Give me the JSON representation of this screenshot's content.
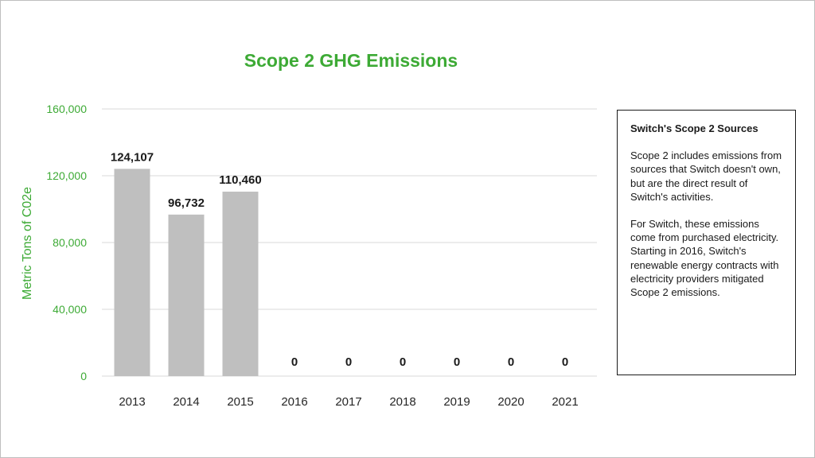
{
  "chart_data": {
    "type": "bar",
    "title": "Scope 2 GHG Emissions",
    "xlabel": "",
    "ylabel": "Metric Tons of C02e",
    "categories": [
      "2013",
      "2014",
      "2015",
      "2016",
      "2017",
      "2018",
      "2019",
      "2020",
      "2021"
    ],
    "values": [
      124107,
      96732,
      110460,
      0,
      0,
      0,
      0,
      0,
      0
    ],
    "data_labels": [
      "124,107",
      "96,732",
      "110,460",
      "0",
      "0",
      "0",
      "0",
      "0",
      "0"
    ],
    "ylim": [
      0,
      160000
    ],
    "y_ticks": [
      0,
      40000,
      80000,
      120000,
      160000
    ],
    "y_tick_labels": [
      "0",
      "40,000",
      "80,000",
      "120,000",
      "160,000"
    ],
    "grid": true,
    "bar_color": "#bfbfbf",
    "accent_color": "#3daa35"
  },
  "infobox": {
    "heading": "Switch's Scope 2 Sources",
    "paragraph1": "Scope 2 includes emissions from sources that Switch doesn't own, but are the direct result of Switch's activities.",
    "paragraph2": "For Switch, these emissions come from purchased electricity. Starting in 2016, Switch's renewable energy contracts with electricity providers mitigated Scope 2 emissions."
  }
}
